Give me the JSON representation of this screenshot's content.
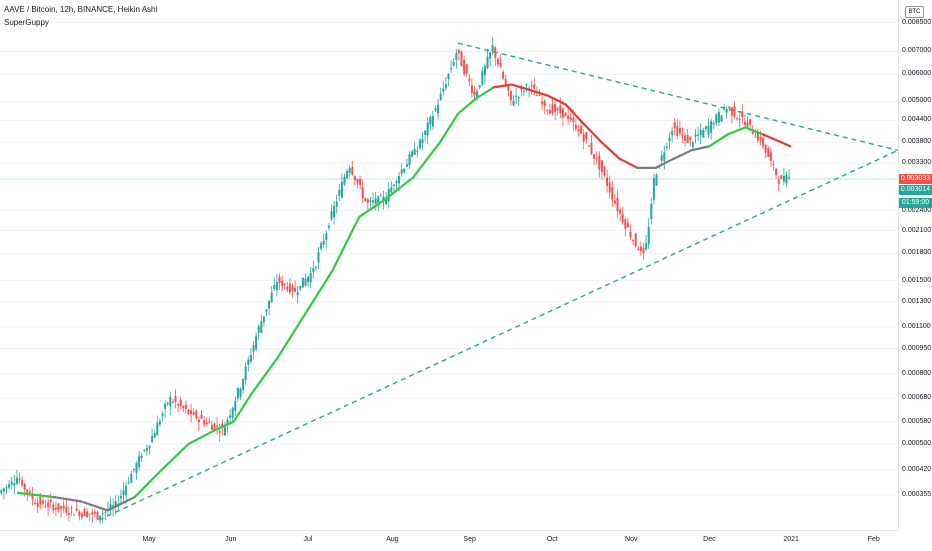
{
  "legend": {
    "symbol": "AAVE / Bitcoin, 12h, BINANCE, Heikin Ashi",
    "indicator": "SuperGuppy"
  },
  "currency_button": "BTC",
  "badges": {
    "last_price": "0.003033",
    "price2": "0.003014",
    "countdown": "01:59:00"
  },
  "colors": {
    "up": "#26a69a",
    "down": "#ef5350",
    "ma_green": "#2ecc40",
    "ma_red": "#e53935",
    "ma_grey": "#787b86",
    "trendline": "#26a69a"
  },
  "chart_data": {
    "type": "candlestick",
    "price_axis_ticks": [
      "0.008500",
      "0.007000",
      "0.006000",
      "0.005000",
      "0.004400",
      "0.003800",
      "0.003300",
      "0.002400",
      "0.002100",
      "0.001800",
      "0.001500",
      "0.001300",
      "0.001100",
      "0.000950",
      "0.000800",
      "0.000680",
      "0.000580",
      "0.000500",
      "0.000420",
      "0.000355"
    ],
    "time_axis_labels": [
      "Apr",
      "May",
      "Jun",
      "Jul",
      "Aug",
      "Sep",
      "Oct",
      "Nov",
      "Dec",
      "2021",
      "Feb"
    ],
    "scale": "log",
    "price_path": [
      [
        0.0,
        0.00036
      ],
      [
        0.02,
        0.0004
      ],
      [
        0.04,
        0.00034
      ],
      [
        0.06,
        0.00033
      ],
      [
        0.08,
        0.00032
      ],
      [
        0.11,
        0.00031
      ],
      [
        0.13,
        0.00033
      ],
      [
        0.15,
        0.00042
      ],
      [
        0.17,
        0.00052
      ],
      [
        0.19,
        0.00068
      ],
      [
        0.21,
        0.00062
      ],
      [
        0.23,
        0.00058
      ],
      [
        0.25,
        0.00055
      ],
      [
        0.27,
        0.00075
      ],
      [
        0.29,
        0.0011
      ],
      [
        0.31,
        0.0015
      ],
      [
        0.33,
        0.0014
      ],
      [
        0.35,
        0.0016
      ],
      [
        0.37,
        0.0023
      ],
      [
        0.39,
        0.0033
      ],
      [
        0.41,
        0.0025
      ],
      [
        0.43,
        0.0026
      ],
      [
        0.45,
        0.0032
      ],
      [
        0.47,
        0.0038
      ],
      [
        0.49,
        0.005
      ],
      [
        0.51,
        0.007
      ],
      [
        0.53,
        0.0052
      ],
      [
        0.55,
        0.0072
      ],
      [
        0.57,
        0.005
      ],
      [
        0.59,
        0.0056
      ],
      [
        0.61,
        0.0048
      ],
      [
        0.63,
        0.0046
      ],
      [
        0.65,
        0.004
      ],
      [
        0.67,
        0.0032
      ],
      [
        0.69,
        0.0024
      ],
      [
        0.71,
        0.0019
      ],
      [
        0.72,
        0.0018
      ],
      [
        0.73,
        0.003
      ],
      [
        0.75,
        0.0042
      ],
      [
        0.77,
        0.0038
      ],
      [
        0.79,
        0.0042
      ],
      [
        0.81,
        0.0048
      ],
      [
        0.83,
        0.0044
      ],
      [
        0.85,
        0.0038
      ],
      [
        0.87,
        0.0029
      ],
      [
        0.88,
        0.003
      ]
    ],
    "upper_trendline": {
      "from": [
        0.51,
        0.0074
      ],
      "to": [
        1.0,
        0.0036
      ]
    },
    "lower_trendline": {
      "from": [
        0.11,
        0.0003
      ],
      "to": [
        1.0,
        0.0036
      ]
    },
    "guppy_line": [
      [
        0.02,
        0.00036
      ],
      [
        0.06,
        0.00035
      ],
      [
        0.09,
        0.00034
      ],
      [
        0.12,
        0.00032
      ],
      [
        0.15,
        0.00035
      ],
      [
        0.18,
        0.00042
      ],
      [
        0.21,
        0.0005
      ],
      [
        0.24,
        0.00055
      ],
      [
        0.26,
        0.00058
      ],
      [
        0.28,
        0.0007
      ],
      [
        0.31,
        0.0009
      ],
      [
        0.34,
        0.0012
      ],
      [
        0.37,
        0.0016
      ],
      [
        0.4,
        0.0023
      ],
      [
        0.43,
        0.0026
      ],
      [
        0.46,
        0.003
      ],
      [
        0.49,
        0.0038
      ],
      [
        0.51,
        0.0046
      ],
      [
        0.53,
        0.0051
      ],
      [
        0.55,
        0.0055
      ],
      [
        0.57,
        0.0056
      ],
      [
        0.59,
        0.0054
      ],
      [
        0.61,
        0.0052
      ],
      [
        0.63,
        0.0049
      ],
      [
        0.65,
        0.0043
      ],
      [
        0.67,
        0.0038
      ],
      [
        0.69,
        0.0034
      ],
      [
        0.71,
        0.0032
      ],
      [
        0.73,
        0.0032
      ],
      [
        0.75,
        0.0034
      ],
      [
        0.77,
        0.0036
      ],
      [
        0.79,
        0.0037
      ],
      [
        0.81,
        0.004
      ],
      [
        0.83,
        0.0042
      ],
      [
        0.85,
        0.004
      ],
      [
        0.87,
        0.0038
      ],
      [
        0.88,
        0.0037
      ]
    ]
  }
}
